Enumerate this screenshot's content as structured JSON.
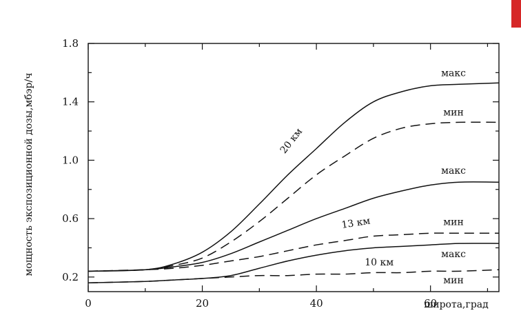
{
  "chart_data": {
    "type": "line",
    "title": "",
    "xlabel": "широта,град",
    "ylabel": "мощность экспозиционной дозы,мбэр/ч",
    "xlim": [
      0,
      72
    ],
    "ylim": [
      0.1,
      1.8
    ],
    "xticks": [
      0,
      20,
      40,
      60
    ],
    "xtick_labels": [
      "0",
      "20",
      "40",
      "60"
    ],
    "yticks": [
      0.2,
      0.6,
      1.0,
      1.4,
      1.8
    ],
    "ytick_labels": [
      "0.2",
      "0.6",
      "1.0",
      "1.4",
      "1.8"
    ],
    "grid": false,
    "series": [
      {
        "key": "20km_max",
        "name": "макс",
        "dashed": false,
        "x": [
          0,
          10,
          15,
          20,
          25,
          30,
          35,
          40,
          45,
          50,
          55,
          60,
          65,
          72
        ],
        "y": [
          0.24,
          0.25,
          0.29,
          0.37,
          0.51,
          0.7,
          0.9,
          1.08,
          1.26,
          1.4,
          1.47,
          1.51,
          1.52,
          1.53
        ]
      },
      {
        "key": "20km_min",
        "name": "мин",
        "dashed": true,
        "x": [
          0,
          10,
          15,
          20,
          25,
          30,
          35,
          40,
          45,
          50,
          55,
          60,
          65,
          72
        ],
        "y": [
          0.24,
          0.25,
          0.28,
          0.33,
          0.44,
          0.58,
          0.74,
          0.9,
          1.03,
          1.15,
          1.22,
          1.25,
          1.26,
          1.26
        ]
      },
      {
        "key": "13km_max",
        "name": "макс",
        "dashed": false,
        "x": [
          0,
          10,
          15,
          20,
          25,
          30,
          35,
          40,
          45,
          50,
          55,
          60,
          65,
          72
        ],
        "y": [
          0.24,
          0.25,
          0.27,
          0.3,
          0.36,
          0.44,
          0.52,
          0.6,
          0.67,
          0.74,
          0.79,
          0.83,
          0.85,
          0.85
        ]
      },
      {
        "key": "13km_min",
        "name": "мин",
        "dashed": true,
        "x": [
          0,
          10,
          15,
          20,
          25,
          30,
          35,
          40,
          45,
          50,
          55,
          60,
          65,
          72
        ],
        "y": [
          0.24,
          0.25,
          0.26,
          0.28,
          0.31,
          0.34,
          0.38,
          0.42,
          0.45,
          0.48,
          0.49,
          0.5,
          0.5,
          0.5
        ]
      },
      {
        "key": "10km_max",
        "name": "макс",
        "dashed": false,
        "x": [
          0,
          10,
          15,
          20,
          25,
          30,
          35,
          40,
          45,
          50,
          55,
          60,
          65,
          72
        ],
        "y": [
          0.16,
          0.17,
          0.18,
          0.19,
          0.21,
          0.26,
          0.31,
          0.35,
          0.38,
          0.4,
          0.41,
          0.42,
          0.43,
          0.43
        ]
      },
      {
        "key": "10km_min",
        "name": "мин",
        "dashed": true,
        "x": [
          0,
          10,
          15,
          20,
          25,
          30,
          35,
          40,
          45,
          50,
          55,
          60,
          65,
          72
        ],
        "y": [
          0.16,
          0.17,
          0.18,
          0.19,
          0.2,
          0.21,
          0.21,
          0.22,
          0.22,
          0.23,
          0.23,
          0.24,
          0.24,
          0.25
        ]
      }
    ],
    "annotations": [
      {
        "key": "label_20km",
        "text": "20 км",
        "x": 36,
        "y": 1.12,
        "rotate": -52
      },
      {
        "key": "label_13km",
        "text": "13 км",
        "x": 47,
        "y": 0.55,
        "rotate": -9
      },
      {
        "key": "label_10km",
        "text": "10 км",
        "x": 51,
        "y": 0.28,
        "rotate": 0
      }
    ],
    "end_labels": [
      {
        "key": "end_20km_max",
        "text": "макс",
        "y": 1.6
      },
      {
        "key": "end_20km_min",
        "text": "мин",
        "y": 1.33
      },
      {
        "key": "end_13km_max",
        "text": "макс",
        "y": 0.93
      },
      {
        "key": "end_13km_min",
        "text": "мин",
        "y": 0.58
      },
      {
        "key": "end_10km_max",
        "text": "макс",
        "y": 0.36
      },
      {
        "key": "end_10km_min",
        "text": "мин",
        "y": 0.18
      }
    ]
  }
}
